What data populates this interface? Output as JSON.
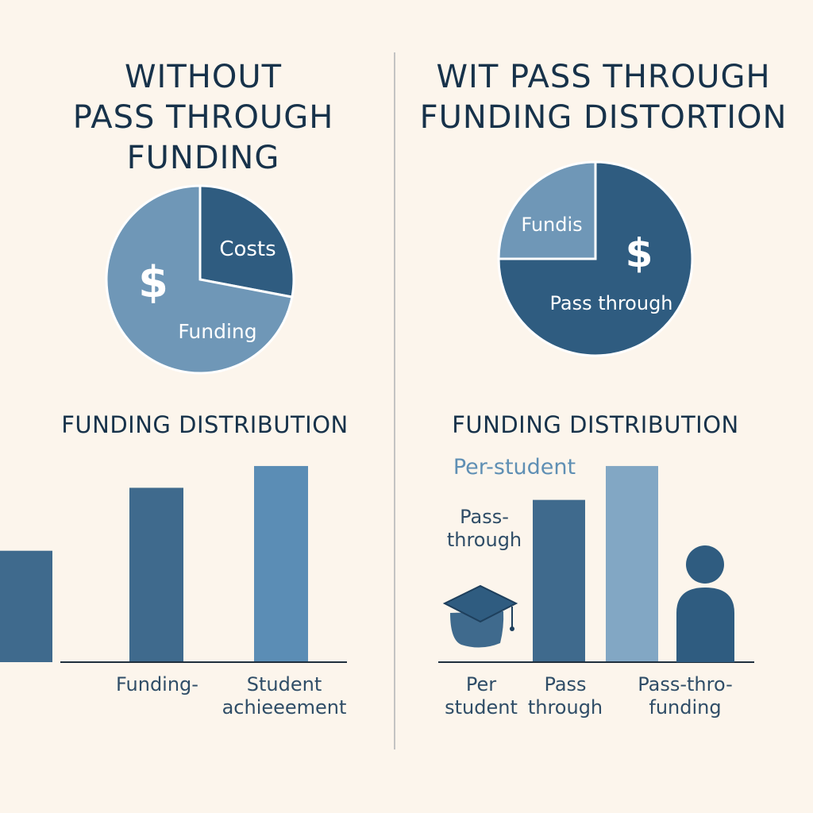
{
  "colors": {
    "background": "#fcf5ec",
    "ink": "#17324a",
    "pie_light": "#6f97b7",
    "pie_dark": "#2f5c80",
    "bar_dark": "#3f6a8d",
    "bar_mid": "#5b8db5",
    "bar_light": "#82a7c4"
  },
  "left": {
    "title_lines": [
      "WITHOUT",
      "PASS THROUGH",
      "FUNDING"
    ],
    "pie_labels": {
      "costs": "Costs",
      "funding": "Funding",
      "symbol": "$"
    },
    "bar_title": "FUNDING DISTRIBUTION",
    "bar_labels": {
      "a": [
        "Funding-"
      ],
      "b": [
        "Student",
        "achieeement"
      ]
    }
  },
  "right": {
    "title_lines": [
      "WIT PASS THROUGH",
      "FUNDING DISTORTION"
    ],
    "pie_labels": {
      "funds": "Fundis",
      "pass": "Pass through",
      "symbol": "$"
    },
    "bar_title": "FUNDING DISTRIBUTION",
    "side_labels": {
      "per_student": "Per-student",
      "pass": [
        "Pass-",
        "through"
      ]
    },
    "bar_labels": {
      "a": [
        "Per",
        "student"
      ],
      "b": [
        "Pass",
        "through"
      ],
      "c": [
        "Pass-thro-",
        "funding"
      ]
    },
    "icons": [
      "graduation-cap-icon",
      "person-icon"
    ]
  },
  "chart_data": [
    {
      "type": "pie",
      "title": "WITHOUT PASS THROUGH FUNDING",
      "slices": [
        {
          "label": "Costs",
          "value": 28
        },
        {
          "label": "Funding",
          "value": 72
        }
      ]
    },
    {
      "type": "pie",
      "title": "WIT PASS THROUGH FUNDING DISTORTION",
      "slices": [
        {
          "label": "Fundis",
          "value": 25
        },
        {
          "label": "Pass through",
          "value": 75
        }
      ]
    },
    {
      "type": "bar",
      "title": "FUNDING DISTRIBUTION",
      "categories": [
        "Funding-",
        "Student achieeement"
      ],
      "values": [
        72,
        81
      ],
      "ylim": [
        0,
        100
      ],
      "grid": false
    },
    {
      "type": "bar",
      "title": "FUNDING DISTRIBUTION",
      "categories": [
        "Per student",
        "Pass through",
        "Pass-thro- funding"
      ],
      "values": [
        67,
        81,
        46
      ],
      "ylim": [
        0,
        100
      ],
      "grid": false
    }
  ]
}
